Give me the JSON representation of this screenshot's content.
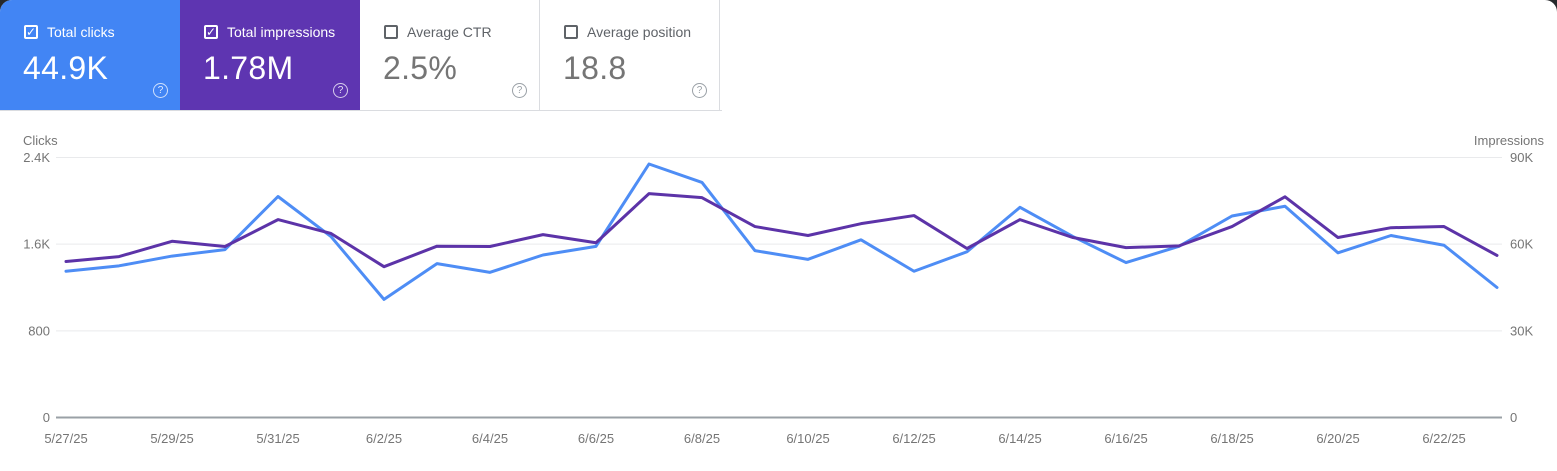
{
  "cards": [
    {
      "label": "Total clicks",
      "value": "44.9K",
      "checked": true,
      "bg": "#4285f4",
      "help_icon": "?"
    },
    {
      "label": "Total impressions",
      "value": "1.78M",
      "checked": true,
      "bg": "#5e35b1",
      "help_icon": "?"
    },
    {
      "label": "Average CTR",
      "value": "2.5%",
      "checked": false,
      "bg": "#ffffff",
      "help_icon": "?"
    },
    {
      "label": "Average position",
      "value": "18.8",
      "checked": false,
      "bg": "#ffffff",
      "help_icon": "?"
    }
  ],
  "chart_data": {
    "type": "line",
    "x": [
      "5/27/25",
      "5/28/25",
      "5/29/25",
      "5/30/25",
      "5/31/25",
      "6/1/25",
      "6/2/25",
      "6/3/25",
      "6/4/25",
      "6/5/25",
      "6/6/25",
      "6/7/25",
      "6/8/25",
      "6/9/25",
      "6/10/25",
      "6/11/25",
      "6/12/25",
      "6/13/25",
      "6/14/25",
      "6/15/25",
      "6/16/25",
      "6/17/25",
      "6/18/25",
      "6/19/25",
      "6/20/25",
      "6/21/25",
      "6/22/25",
      "6/23/25"
    ],
    "x_tick_labels": [
      "5/27/25",
      "5/29/25",
      "5/31/25",
      "6/2/25",
      "6/4/25",
      "6/6/25",
      "6/8/25",
      "6/10/25",
      "6/12/25",
      "6/14/25",
      "6/16/25",
      "6/18/25",
      "6/20/25",
      "6/22/25"
    ],
    "series": [
      {
        "name": "Clicks",
        "axis": "left",
        "color": "#4e8df5",
        "values": [
          1350,
          1400,
          1490,
          1550,
          2040,
          1670,
          1090,
          1420,
          1340,
          1500,
          1580,
          2340,
          2170,
          1540,
          1460,
          1640,
          1350,
          1530,
          1940,
          1670,
          1430,
          1580,
          1860,
          1950,
          1520,
          1680,
          1590,
          1200
        ]
      },
      {
        "name": "Impressions",
        "axis": "right",
        "color": "#5c33a8",
        "values": [
          54000,
          55700,
          61000,
          59200,
          68500,
          63700,
          52200,
          59300,
          59200,
          63300,
          60500,
          77500,
          76100,
          66100,
          63000,
          67100,
          69900,
          58500,
          68500,
          62300,
          58800,
          59400,
          66100,
          76400,
          62300,
          65700,
          66100,
          56100
        ]
      }
    ],
    "left_axis": {
      "title": "Clicks",
      "max": 2400,
      "tick_values": [
        0,
        800,
        1600,
        2400
      ],
      "tick_labels": [
        "0",
        "800",
        "1.6K",
        "2.4K"
      ]
    },
    "right_axis": {
      "title": "Impressions",
      "max": 90000,
      "tick_values": [
        0,
        30000,
        60000,
        90000
      ],
      "tick_labels": [
        "0",
        "30K",
        "60K",
        "90K"
      ]
    },
    "grid": true,
    "legend_position": "none",
    "colors": {
      "gridline": "#e9eaec",
      "axis_line": "#9aa0a6",
      "tick_text": "#757575"
    }
  }
}
